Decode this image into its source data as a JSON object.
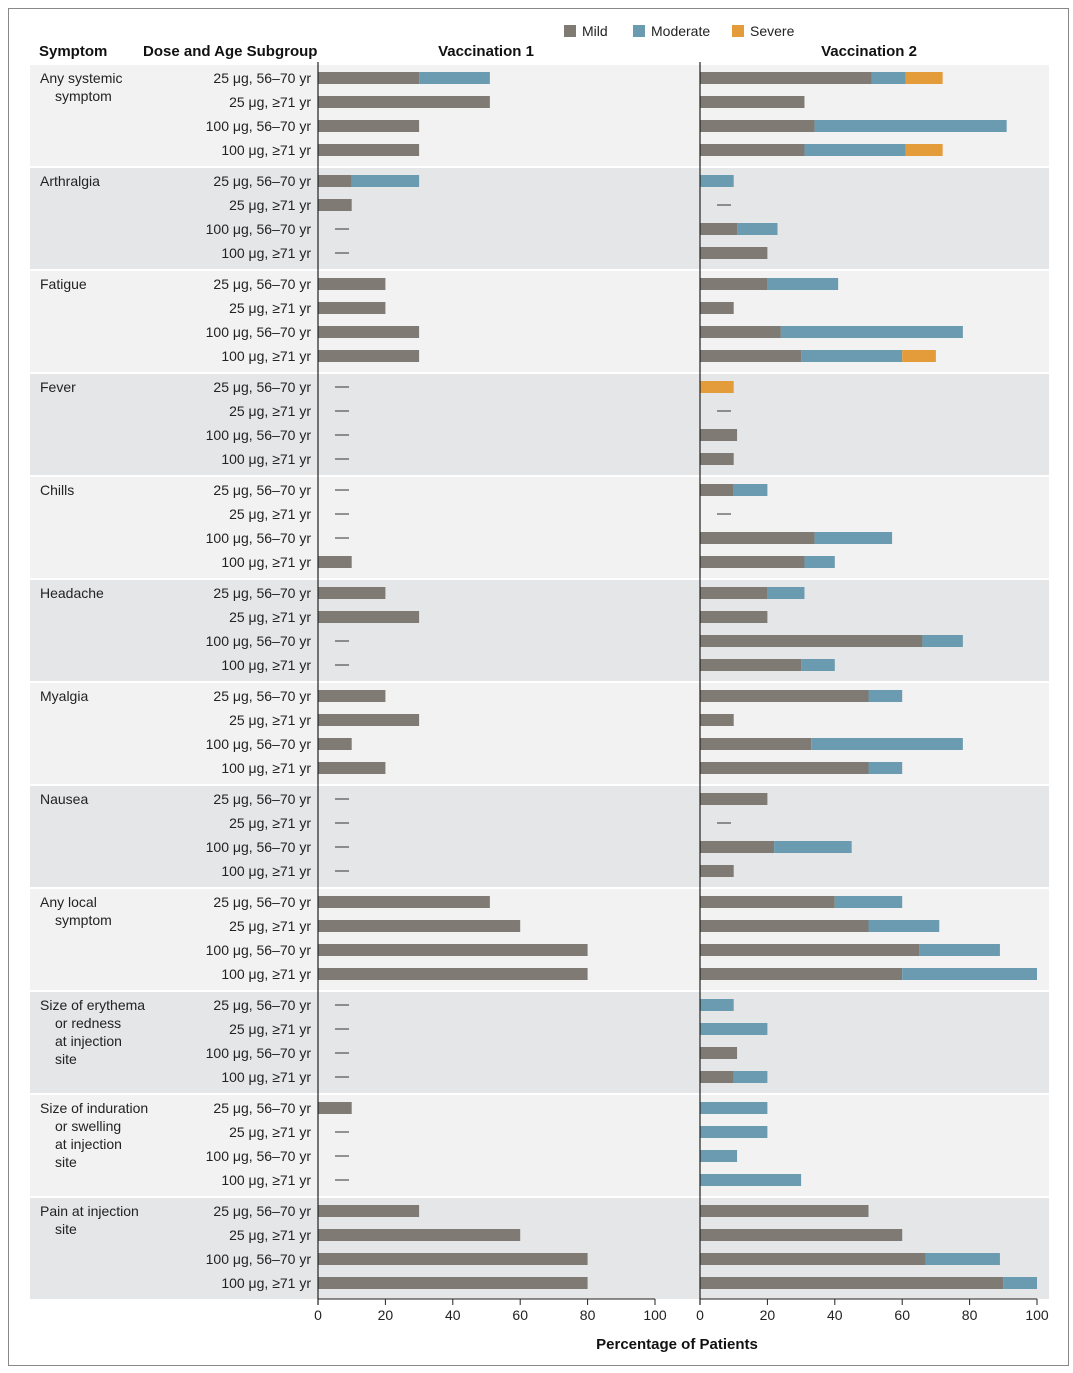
{
  "chart_data": {
    "type": "bar",
    "orientation": "horizontal-stacked",
    "xlabel": "Percentage of Patients",
    "xlim": [
      0,
      100
    ],
    "xticks": [
      0,
      20,
      40,
      60,
      80,
      100
    ],
    "headers": {
      "symptom": "Symptom",
      "subgroup": "Dose and Age Subgroup",
      "panel1": "Vaccination 1",
      "panel2": "Vaccination 2"
    },
    "legend": [
      {
        "name": "Mild",
        "color": "#7f7b74"
      },
      {
        "name": "Moderate",
        "color": "#6b9bb0"
      },
      {
        "name": "Severe",
        "color": "#e49c3a"
      }
    ],
    "legend_position": "top-center",
    "subgroups": [
      "25 μg, 56–70 yr",
      "25 μg, ≥71 yr",
      "100 μg, 56–70 yr",
      "100 μg, ≥71 yr"
    ],
    "none_marker": "—",
    "note": "Values are [mild, moderate, severe] percentages; null = none reported",
    "symptoms": [
      {
        "name": [
          "Any systemic",
          "symptom"
        ],
        "v1": [
          [
            30,
            21,
            0
          ],
          [
            51,
            0,
            0
          ],
          [
            30,
            0,
            0
          ],
          [
            30,
            0,
            0
          ]
        ],
        "v2": [
          [
            51,
            10,
            11
          ],
          [
            31,
            0,
            0
          ],
          [
            34,
            57,
            0
          ],
          [
            31,
            30,
            11
          ]
        ]
      },
      {
        "name": [
          "Arthralgia"
        ],
        "v1": [
          [
            10,
            20,
            0
          ],
          [
            10,
            0,
            0
          ],
          null,
          null
        ],
        "v2": [
          [
            0,
            10,
            0
          ],
          null,
          [
            11,
            12,
            0
          ],
          [
            20,
            0,
            0
          ]
        ]
      },
      {
        "name": [
          "Fatigue"
        ],
        "v1": [
          [
            20,
            0,
            0
          ],
          [
            20,
            0,
            0
          ],
          [
            30,
            0,
            0
          ],
          [
            30,
            0,
            0
          ]
        ],
        "v2": [
          [
            20,
            21,
            0
          ],
          [
            10,
            0,
            0
          ],
          [
            24,
            54,
            0
          ],
          [
            30,
            30,
            10
          ]
        ]
      },
      {
        "name": [
          "Fever"
        ],
        "v1": [
          null,
          null,
          null,
          null
        ],
        "v2": [
          [
            0,
            0,
            10
          ],
          null,
          [
            11,
            0,
            0
          ],
          [
            10,
            0,
            0
          ]
        ]
      },
      {
        "name": [
          "Chills"
        ],
        "v1": [
          null,
          null,
          null,
          [
            10,
            0,
            0
          ]
        ],
        "v2": [
          [
            10,
            10,
            0
          ],
          null,
          [
            34,
            23,
            0
          ],
          [
            31,
            9,
            0
          ]
        ]
      },
      {
        "name": [
          "Headache"
        ],
        "v1": [
          [
            20,
            0,
            0
          ],
          [
            30,
            0,
            0
          ],
          null,
          null
        ],
        "v2": [
          [
            20,
            11,
            0
          ],
          [
            20,
            0,
            0
          ],
          [
            66,
            12,
            0
          ],
          [
            30,
            10,
            0
          ]
        ]
      },
      {
        "name": [
          "Myalgia"
        ],
        "v1": [
          [
            20,
            0,
            0
          ],
          [
            30,
            0,
            0
          ],
          [
            10,
            0,
            0
          ],
          [
            20,
            0,
            0
          ]
        ],
        "v2": [
          [
            50,
            10,
            0
          ],
          [
            10,
            0,
            0
          ],
          [
            33,
            45,
            0
          ],
          [
            50,
            10,
            0
          ]
        ]
      },
      {
        "name": [
          "Nausea"
        ],
        "v1": [
          null,
          null,
          null,
          null
        ],
        "v2": [
          [
            20,
            0,
            0
          ],
          null,
          [
            22,
            23,
            0
          ],
          [
            10,
            0,
            0
          ]
        ]
      },
      {
        "name": [
          "Any local",
          "symptom"
        ],
        "v1": [
          [
            51,
            0,
            0
          ],
          [
            60,
            0,
            0
          ],
          [
            80,
            0,
            0
          ],
          [
            80,
            0,
            0
          ]
        ],
        "v2": [
          [
            40,
            20,
            0
          ],
          [
            50,
            21,
            0
          ],
          [
            65,
            24,
            0
          ],
          [
            60,
            40,
            0
          ]
        ]
      },
      {
        "name": [
          "Size of erythema",
          "or redness",
          "at injection",
          "site"
        ],
        "v1": [
          null,
          null,
          null,
          null
        ],
        "v2": [
          [
            0,
            10,
            0
          ],
          [
            0,
            20,
            0
          ],
          [
            11,
            0,
            0
          ],
          [
            10,
            10,
            0
          ]
        ]
      },
      {
        "name": [
          "Size of induration",
          "or swelling",
          "at injection",
          "site"
        ],
        "v1": [
          [
            10,
            0,
            0
          ],
          null,
          null,
          null
        ],
        "v2": [
          [
            0,
            20,
            0
          ],
          [
            0,
            20,
            0
          ],
          [
            0,
            11,
            0
          ],
          [
            0,
            30,
            0
          ]
        ]
      },
      {
        "name": [
          "Pain at injection",
          "site"
        ],
        "v1": [
          [
            30,
            0,
            0
          ],
          [
            60,
            0,
            0
          ],
          [
            80,
            0,
            0
          ],
          [
            80,
            0,
            0
          ]
        ],
        "v2": [
          [
            50,
            0,
            0
          ],
          [
            60,
            0,
            0
          ],
          [
            67,
            22,
            0
          ],
          [
            90,
            10,
            0
          ]
        ]
      }
    ]
  }
}
